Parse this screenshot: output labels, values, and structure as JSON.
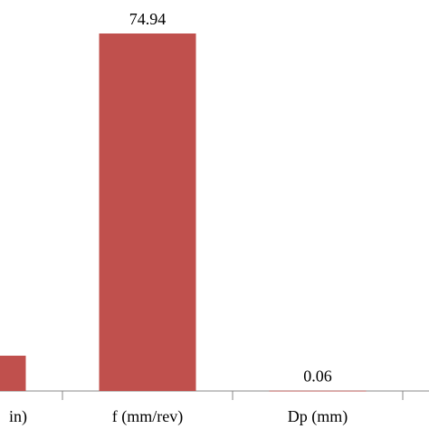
{
  "chart_data": {
    "type": "bar",
    "categories": [
      "in)",
      "f (mm/rev)",
      "Dp (mm)"
    ],
    "values": [
      7.4,
      74.94,
      0.06
    ],
    "color": "#c0504d",
    "data_labels": true
  }
}
